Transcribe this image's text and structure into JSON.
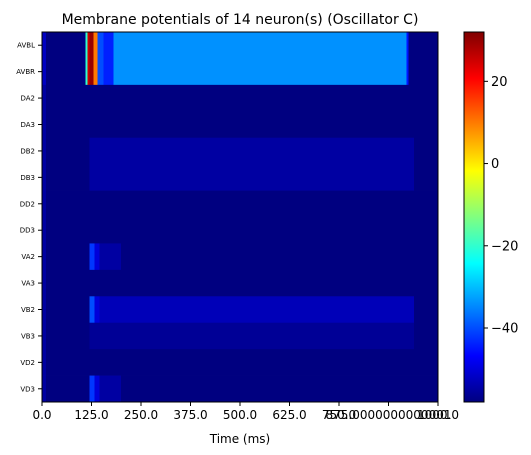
{
  "chart_data": {
    "type": "heatmap",
    "title": "Membrane potentials of 14 neuron(s) (Oscillator C)",
    "xlabel": "Time (ms)",
    "ylabel": "",
    "xlim": [
      0,
      1000
    ],
    "x_tick_values": [
      0,
      125,
      250,
      375,
      500,
      625,
      750,
      875,
      1000
    ],
    "x_tick_labels": [
      "0.0",
      "125.0",
      "250.0",
      "375.0",
      "500.0",
      "625.0",
      "750.0",
      "875.0000000000001",
      "1000.0"
    ],
    "neurons": [
      "AVBL",
      "AVBR",
      "DA2",
      "DA3",
      "DB2",
      "DB3",
      "DD2",
      "DD3",
      "VA2",
      "VA3",
      "VB2",
      "VB3",
      "VD2",
      "VD3"
    ],
    "colormap": "jet",
    "colorbar": {
      "min": -58,
      "max": 32,
      "ticks": [
        20,
        0,
        -20,
        -40
      ]
    },
    "rows": [
      {
        "name": "AVBL",
        "segments": [
          [
            0,
            0,
            -58
          ],
          [
            0,
            10,
            -52
          ],
          [
            10,
            110,
            -58
          ],
          [
            110,
            115,
            -20
          ],
          [
            115,
            120,
            25
          ],
          [
            120,
            130,
            30
          ],
          [
            130,
            140,
            10
          ],
          [
            140,
            155,
            -40
          ],
          [
            155,
            180,
            -44
          ],
          [
            180,
            210,
            -34
          ],
          [
            210,
            920,
            -34
          ],
          [
            920,
            925,
            -45
          ],
          [
            925,
            1000,
            -58
          ]
        ]
      },
      {
        "name": "AVBR",
        "segments": [
          [
            0,
            0,
            -58
          ],
          [
            0,
            10,
            -52
          ],
          [
            10,
            110,
            -58
          ],
          [
            110,
            115,
            -20
          ],
          [
            115,
            120,
            25
          ],
          [
            120,
            130,
            30
          ],
          [
            130,
            140,
            10
          ],
          [
            140,
            155,
            -40
          ],
          [
            155,
            180,
            -44
          ],
          [
            180,
            210,
            -34
          ],
          [
            210,
            920,
            -34
          ],
          [
            920,
            925,
            -45
          ],
          [
            925,
            1000,
            -58
          ]
        ]
      },
      {
        "name": "DA2",
        "segments": [
          [
            0,
            10,
            -55
          ],
          [
            10,
            1000,
            -58
          ]
        ]
      },
      {
        "name": "DA3",
        "segments": [
          [
            0,
            10,
            -55
          ],
          [
            10,
            1000,
            -58
          ]
        ]
      },
      {
        "name": "DB2",
        "segments": [
          [
            0,
            10,
            -55
          ],
          [
            10,
            120,
            -58
          ],
          [
            120,
            940,
            -55
          ],
          [
            940,
            1000,
            -58
          ]
        ]
      },
      {
        "name": "DB3",
        "segments": [
          [
            0,
            10,
            -55
          ],
          [
            10,
            120,
            -58
          ],
          [
            120,
            940,
            -55
          ],
          [
            940,
            1000,
            -58
          ]
        ]
      },
      {
        "name": "DD2",
        "segments": [
          [
            0,
            10,
            -55
          ],
          [
            10,
            1000,
            -58
          ]
        ]
      },
      {
        "name": "DD3",
        "segments": [
          [
            0,
            10,
            -55
          ],
          [
            10,
            1000,
            -58
          ]
        ]
      },
      {
        "name": "VA2",
        "segments": [
          [
            0,
            10,
            -55
          ],
          [
            10,
            120,
            -58
          ],
          [
            120,
            132,
            -42
          ],
          [
            132,
            145,
            -50
          ],
          [
            145,
            200,
            -55
          ],
          [
            200,
            1000,
            -58
          ]
        ]
      },
      {
        "name": "VA3",
        "segments": [
          [
            0,
            10,
            -55
          ],
          [
            10,
            1000,
            -58
          ]
        ]
      },
      {
        "name": "VB2",
        "segments": [
          [
            0,
            10,
            -55
          ],
          [
            10,
            120,
            -58
          ],
          [
            120,
            132,
            -40
          ],
          [
            132,
            145,
            -50
          ],
          [
            145,
            940,
            -53
          ],
          [
            940,
            1000,
            -58
          ]
        ]
      },
      {
        "name": "VB3",
        "segments": [
          [
            0,
            10,
            -55
          ],
          [
            10,
            120,
            -58
          ],
          [
            120,
            940,
            -56
          ],
          [
            940,
            1000,
            -58
          ]
        ]
      },
      {
        "name": "VD2",
        "segments": [
          [
            0,
            10,
            -55
          ],
          [
            10,
            1000,
            -58
          ]
        ]
      },
      {
        "name": "VD3",
        "segments": [
          [
            0,
            10,
            -55
          ],
          [
            10,
            120,
            -58
          ],
          [
            120,
            132,
            -42
          ],
          [
            132,
            145,
            -50
          ],
          [
            145,
            200,
            -55
          ],
          [
            200,
            1000,
            -58
          ]
        ]
      }
    ]
  }
}
